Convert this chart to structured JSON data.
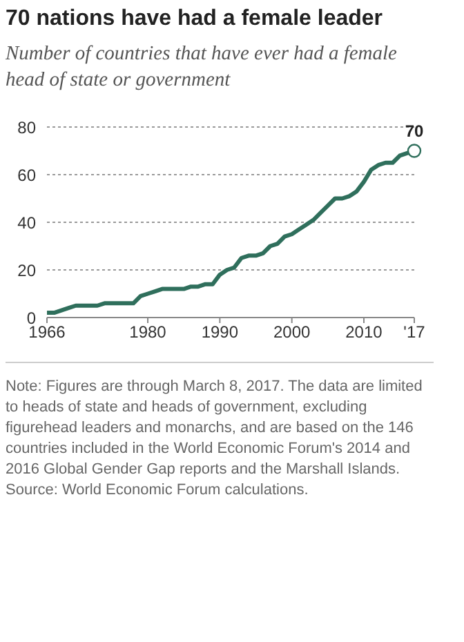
{
  "chart_data": {
    "type": "line",
    "title": "70 nations have had a female leader",
    "subtitle": "Number of countries that have ever had a female head of state or government",
    "x": [
      1966,
      1967,
      1968,
      1969,
      1970,
      1971,
      1972,
      1973,
      1974,
      1975,
      1976,
      1977,
      1978,
      1979,
      1980,
      1981,
      1982,
      1983,
      1984,
      1985,
      1986,
      1987,
      1988,
      1989,
      1990,
      1991,
      1992,
      1993,
      1994,
      1995,
      1996,
      1997,
      1998,
      1999,
      2000,
      2001,
      2002,
      2003,
      2004,
      2005,
      2006,
      2007,
      2008,
      2009,
      2010,
      2011,
      2012,
      2013,
      2014,
      2015,
      2016,
      2017
    ],
    "series": [
      {
        "color": "#2f6f5c",
        "values": [
          2,
          2,
          3,
          4,
          5,
          5,
          5,
          5,
          6,
          6,
          6,
          6,
          6,
          9,
          10,
          11,
          12,
          12,
          12,
          12,
          13,
          13,
          14,
          14,
          18,
          20,
          21,
          25,
          26,
          26,
          27,
          30,
          31,
          34,
          35,
          37,
          39,
          41,
          44,
          47,
          50,
          50,
          51,
          53,
          57,
          62,
          64,
          65,
          65,
          68,
          69,
          70
        ]
      }
    ],
    "xlim": [
      1966,
      2017
    ],
    "xticks": [
      1966,
      1980,
      1990,
      2000,
      2010,
      {
        "value": 2017,
        "label": "'17"
      }
    ],
    "ylim": [
      0,
      80
    ],
    "yticks": [
      0,
      20,
      40,
      60,
      80
    ],
    "grid": "y",
    "annotations": [
      {
        "text": "70",
        "x": 2017,
        "y": 70
      },
      "Note: Figures are through March 8, 2017. The data are limited to heads of state and heads of government, excluding figurehead leaders and monarchs, and are based on the 146 countries included in the World Economic Forum's 2014 and 2016 Global Gender Gap reports and the Marshall Islands.",
      "Source: World Economic Forum calculations."
    ]
  }
}
